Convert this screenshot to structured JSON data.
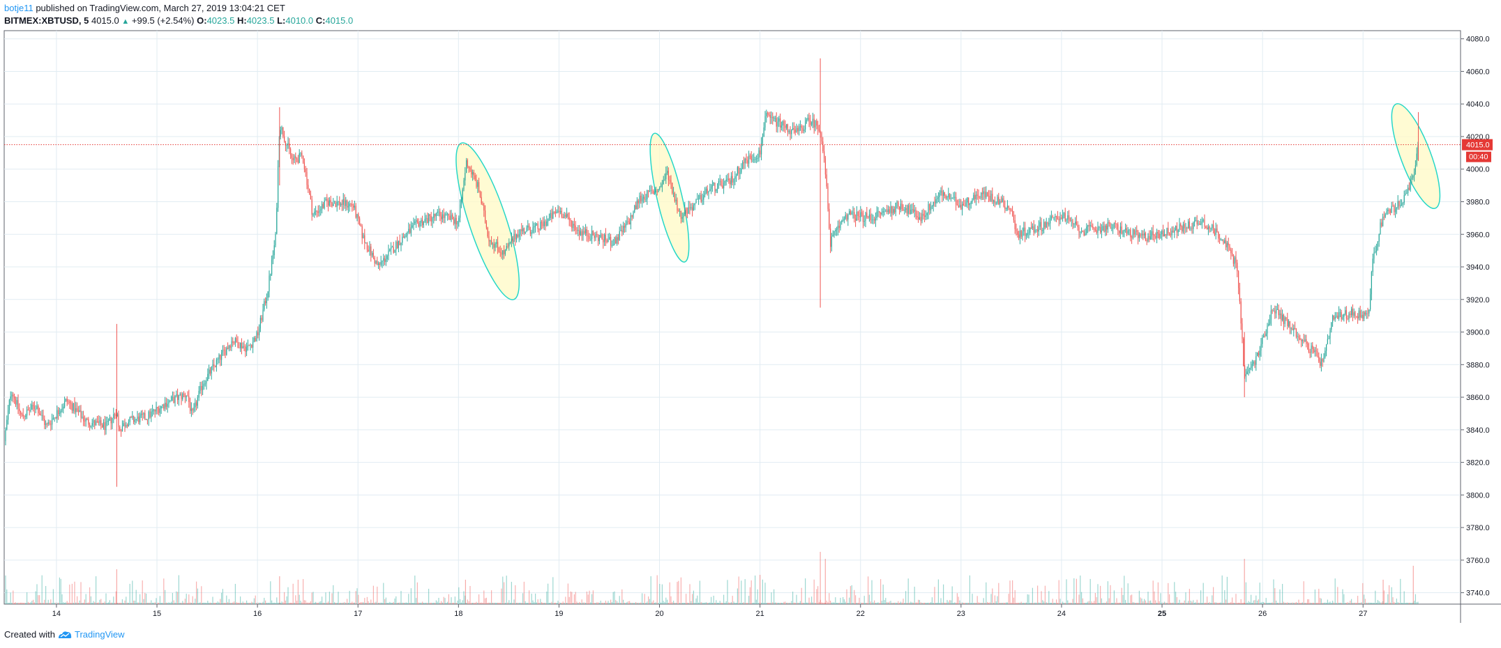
{
  "header": {
    "user": "botje11",
    "published": "published on TradingView.com, March 27, 2019 13:04:21 CET",
    "symbol": "BITMEX:XBTUSD, 5",
    "last": "4015.0",
    "change": "+99.5 (+2.54%)",
    "o_label": "O:",
    "o": "4023.5",
    "h_label": "H:",
    "h": "4023.5",
    "l_label": "L:",
    "l": "4010.0",
    "c_label": "C:",
    "c": "4015.0"
  },
  "footer": {
    "created_with": "Created with",
    "brand": "TradingView"
  },
  "colors": {
    "up": "#26a69a",
    "down": "#ef5350",
    "grid": "#e1ecf2",
    "price_line": "#e53935",
    "ellipse_fill": "#fff9c4",
    "ellipse_stroke": "#26d7c8"
  },
  "chart_data": {
    "type": "candlestick",
    "symbol": "BITMEX:XBTUSD",
    "interval": "5",
    "x_tick_labels": [
      "14",
      "15",
      "16",
      "17",
      "18",
      "19",
      "20",
      "21",
      "22",
      "23",
      "24",
      "25",
      "26",
      "27"
    ],
    "y_tick_labels": [
      "4080.0",
      "4060.0",
      "4040.0",
      "4020.0",
      "4000.0",
      "3980.0",
      "3960.0",
      "3940.0",
      "3920.0",
      "3900.0",
      "3880.0",
      "3860.0",
      "3840.0",
      "3820.0",
      "3800.0",
      "3780.0",
      "3760.0",
      "3740.0"
    ],
    "ylim": [
      3733,
      4085
    ],
    "grid": true,
    "current_price": 4015.0,
    "current_price_label": "4015.0",
    "countdown_label": "00:40",
    "x_range_days": [
      13.48,
      27.97
    ],
    "price_path": [
      [
        13.48,
        3833
      ],
      [
        13.55,
        3865
      ],
      [
        13.65,
        3848
      ],
      [
        13.8,
        3855
      ],
      [
        13.9,
        3842
      ],
      [
        14.0,
        3850
      ],
      [
        14.1,
        3858
      ],
      [
        14.3,
        3845
      ],
      [
        14.5,
        3842
      ],
      [
        14.6,
        3852
      ],
      [
        14.62,
        3840
      ],
      [
        14.7,
        3845
      ],
      [
        14.9,
        3848
      ],
      [
        15.1,
        3857
      ],
      [
        15.3,
        3862
      ],
      [
        15.35,
        3848
      ],
      [
        15.45,
        3868
      ],
      [
        15.6,
        3882
      ],
      [
        15.75,
        3895
      ],
      [
        15.9,
        3890
      ],
      [
        16.0,
        3898
      ],
      [
        16.1,
        3925
      ],
      [
        16.18,
        3958
      ],
      [
        16.22,
        4028
      ],
      [
        16.35,
        4005
      ],
      [
        16.45,
        4008
      ],
      [
        16.55,
        3972
      ],
      [
        16.7,
        3980
      ],
      [
        16.95,
        3978
      ],
      [
        17.05,
        3958
      ],
      [
        17.2,
        3940
      ],
      [
        17.4,
        3955
      ],
      [
        17.6,
        3967
      ],
      [
        17.8,
        3972
      ],
      [
        18.0,
        3968
      ],
      [
        18.08,
        4005
      ],
      [
        18.2,
        3988
      ],
      [
        18.3,
        3958
      ],
      [
        18.45,
        3948
      ],
      [
        18.6,
        3962
      ],
      [
        18.8,
        3964
      ],
      [
        19.0,
        3975
      ],
      [
        19.2,
        3962
      ],
      [
        19.4,
        3958
      ],
      [
        19.55,
        3955
      ],
      [
        19.7,
        3968
      ],
      [
        19.8,
        3982
      ],
      [
        20.0,
        3988
      ],
      [
        20.08,
        3998
      ],
      [
        20.2,
        3972
      ],
      [
        20.35,
        3978
      ],
      [
        20.5,
        3988
      ],
      [
        20.7,
        3992
      ],
      [
        20.85,
        4005
      ],
      [
        21.0,
        4010
      ],
      [
        21.05,
        4032
      ],
      [
        21.2,
        4028
      ],
      [
        21.35,
        4022
      ],
      [
        21.5,
        4030
      ],
      [
        21.6,
        4025
      ],
      [
        21.65,
        3998
      ],
      [
        21.7,
        3955
      ],
      [
        21.85,
        3972
      ],
      [
        22.1,
        3970
      ],
      [
        22.4,
        3978
      ],
      [
        22.6,
        3970
      ],
      [
        22.8,
        3985
      ],
      [
        23.0,
        3978
      ],
      [
        23.2,
        3985
      ],
      [
        23.4,
        3980
      ],
      [
        23.5,
        3975
      ],
      [
        23.55,
        3960
      ],
      [
        23.8,
        3965
      ],
      [
        24.0,
        3972
      ],
      [
        24.2,
        3962
      ],
      [
        24.5,
        3965
      ],
      [
        24.8,
        3958
      ],
      [
        25.1,
        3962
      ],
      [
        25.4,
        3968
      ],
      [
        25.6,
        3958
      ],
      [
        25.75,
        3940
      ],
      [
        25.82,
        3872
      ],
      [
        25.95,
        3885
      ],
      [
        26.1,
        3915
      ],
      [
        26.3,
        3902
      ],
      [
        26.5,
        3888
      ],
      [
        26.6,
        3880
      ],
      [
        26.7,
        3908
      ],
      [
        26.9,
        3912
      ],
      [
        27.05,
        3910
      ],
      [
        27.1,
        3945
      ],
      [
        27.2,
        3972
      ],
      [
        27.4,
        3980
      ],
      [
        27.5,
        3995
      ],
      [
        27.55,
        4015
      ]
    ],
    "annotations": [
      {
        "shape": "ellipse",
        "from_day": 18.03,
        "to_day": 18.55,
        "price_top": 4016,
        "price_bottom": 3920
      },
      {
        "shape": "ellipse",
        "from_day": 19.95,
        "to_day": 20.25,
        "price_top": 4022,
        "price_bottom": 3943
      },
      {
        "shape": "ellipse",
        "from_day": 27.33,
        "to_day": 27.72,
        "price_top": 4040,
        "price_bottom": 3976
      }
    ]
  }
}
